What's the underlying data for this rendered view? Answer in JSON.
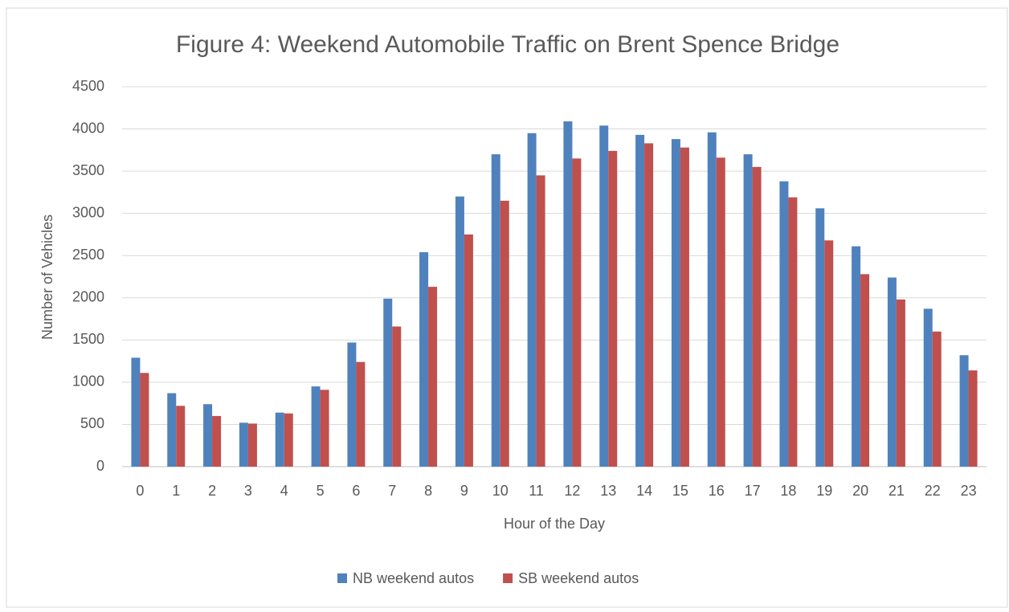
{
  "chart_data": {
    "type": "bar",
    "title": "Figure 4: Weekend Automobile Traffic on Brent Spence Bridge",
    "x_label": "Hour of the Day",
    "y_label": "Number of Vehicles",
    "categories": [
      "0",
      "1",
      "2",
      "3",
      "4",
      "5",
      "6",
      "7",
      "8",
      "9",
      "10",
      "11",
      "12",
      "13",
      "14",
      "15",
      "16",
      "17",
      "18",
      "19",
      "20",
      "21",
      "22",
      "23"
    ],
    "series": [
      {
        "name": "NB weekend autos",
        "color": "#4f81bd",
        "values": [
          1290,
          870,
          740,
          520,
          640,
          950,
          1470,
          1990,
          2540,
          3200,
          3700,
          3950,
          4090,
          4040,
          3930,
          3880,
          3960,
          3700,
          3380,
          3060,
          2610,
          2240,
          1870,
          1320
        ]
      },
      {
        "name": "SB weekend autos",
        "color": "#c0504d",
        "values": [
          1110,
          720,
          600,
          510,
          630,
          910,
          1240,
          1660,
          2130,
          2750,
          3150,
          3450,
          3650,
          3740,
          3830,
          3780,
          3660,
          3550,
          3190,
          2680,
          2280,
          1980,
          1600,
          1140
        ]
      }
    ],
    "ylim": [
      0,
      4500
    ],
    "yticks": [
      0,
      500,
      1000,
      1500,
      2000,
      2500,
      3000,
      3500,
      4000,
      4500
    ],
    "grid": true,
    "legend": "bottom"
  }
}
